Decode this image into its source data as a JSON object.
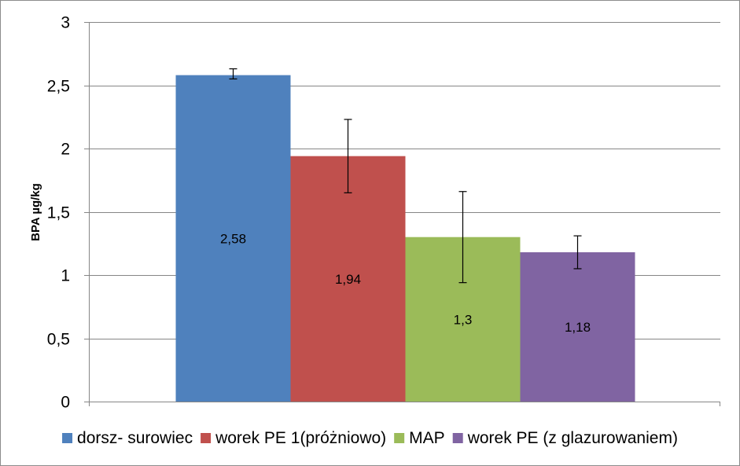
{
  "chart_data": {
    "type": "bar",
    "title": "",
    "xlabel": "",
    "ylabel": "BPA µg/kg",
    "ylim": [
      0,
      3
    ],
    "yticks": [
      0,
      0.5,
      1,
      1.5,
      2,
      2.5,
      3
    ],
    "ytick_labels": [
      "0",
      "0,5",
      "1",
      "1,5",
      "2",
      "2,5",
      "3"
    ],
    "grid": true,
    "legend_position": "bottom",
    "categories": [
      ""
    ],
    "series": [
      {
        "name": "dorsz- surowiec",
        "values": [
          2.58
        ],
        "label": "2,58",
        "error_low": [
          2.55
        ],
        "error_high": [
          2.63
        ],
        "color": "#4f81bd"
      },
      {
        "name": "worek PE 1(próżniowo)",
        "values": [
          1.94
        ],
        "label": "1,94",
        "error_low": [
          1.65
        ],
        "error_high": [
          2.23
        ],
        "color": "#c0504d"
      },
      {
        "name": "MAP",
        "values": [
          1.3
        ],
        "label": "1,3",
        "error_low": [
          0.94
        ],
        "error_high": [
          1.66
        ],
        "color": "#9bbb59"
      },
      {
        "name": "worek PE (z glazurowaniem)",
        "values": [
          1.18
        ],
        "label": "1,18",
        "error_low": [
          1.05
        ],
        "error_high": [
          1.31
        ],
        "color": "#8064a2"
      }
    ]
  }
}
